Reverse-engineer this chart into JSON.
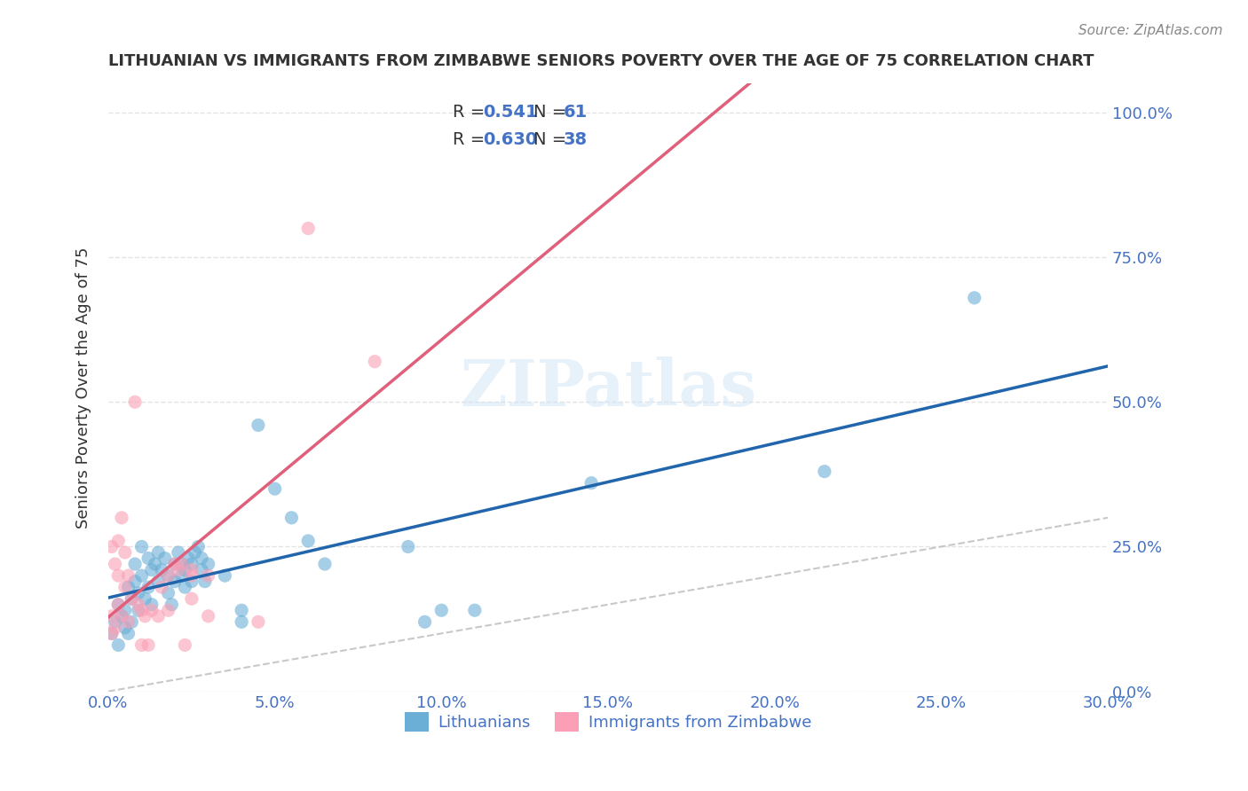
{
  "title": "LITHUANIAN VS IMMIGRANTS FROM ZIMBABWE SENIORS POVERTY OVER THE AGE OF 75 CORRELATION CHART",
  "source": "Source: ZipAtlas.com",
  "xlabel": "",
  "ylabel": "Seniors Poverty Over the Age of 75",
  "xlim": [
    0.0,
    0.3
  ],
  "ylim": [
    0.0,
    1.05
  ],
  "xticks": [
    0.0,
    0.05,
    0.1,
    0.15,
    0.2,
    0.25,
    0.3
  ],
  "yticks_right": [
    0.0,
    0.25,
    0.5,
    0.75,
    1.0
  ],
  "blue_R": 0.541,
  "blue_N": 61,
  "pink_R": 0.63,
  "pink_N": 38,
  "blue_color": "#6baed6",
  "pink_color": "#fa9fb5",
  "blue_line_color": "#2166ac",
  "pink_line_color": "#e05f7a",
  "blue_scatter": [
    [
      0.001,
      0.1
    ],
    [
      0.002,
      0.12
    ],
    [
      0.003,
      0.08
    ],
    [
      0.003,
      0.15
    ],
    [
      0.004,
      0.13
    ],
    [
      0.005,
      0.11
    ],
    [
      0.005,
      0.14
    ],
    [
      0.006,
      0.1
    ],
    [
      0.006,
      0.18
    ],
    [
      0.007,
      0.16
    ],
    [
      0.007,
      0.12
    ],
    [
      0.008,
      0.19
    ],
    [
      0.008,
      0.22
    ],
    [
      0.009,
      0.14
    ],
    [
      0.009,
      0.17
    ],
    [
      0.01,
      0.2
    ],
    [
      0.01,
      0.25
    ],
    [
      0.011,
      0.16
    ],
    [
      0.012,
      0.18
    ],
    [
      0.012,
      0.23
    ],
    [
      0.013,
      0.21
    ],
    [
      0.013,
      0.15
    ],
    [
      0.014,
      0.22
    ],
    [
      0.015,
      0.19
    ],
    [
      0.015,
      0.24
    ],
    [
      0.016,
      0.21
    ],
    [
      0.017,
      0.23
    ],
    [
      0.018,
      0.2
    ],
    [
      0.018,
      0.17
    ],
    [
      0.019,
      0.15
    ],
    [
      0.02,
      0.22
    ],
    [
      0.02,
      0.19
    ],
    [
      0.021,
      0.24
    ],
    [
      0.022,
      0.22
    ],
    [
      0.022,
      0.2
    ],
    [
      0.023,
      0.21
    ],
    [
      0.023,
      0.18
    ],
    [
      0.024,
      0.23
    ],
    [
      0.025,
      0.22
    ],
    [
      0.025,
      0.19
    ],
    [
      0.026,
      0.24
    ],
    [
      0.027,
      0.25
    ],
    [
      0.028,
      0.23
    ],
    [
      0.028,
      0.21
    ],
    [
      0.029,
      0.19
    ],
    [
      0.03,
      0.22
    ],
    [
      0.035,
      0.2
    ],
    [
      0.04,
      0.14
    ],
    [
      0.045,
      0.46
    ],
    [
      0.05,
      0.35
    ],
    [
      0.055,
      0.3
    ],
    [
      0.06,
      0.26
    ],
    [
      0.065,
      0.22
    ],
    [
      0.09,
      0.25
    ],
    [
      0.095,
      0.12
    ],
    [
      0.1,
      0.14
    ],
    [
      0.11,
      0.14
    ],
    [
      0.145,
      0.36
    ],
    [
      0.215,
      0.38
    ],
    [
      0.26,
      0.68
    ],
    [
      0.04,
      0.12
    ]
  ],
  "pink_scatter": [
    [
      0.001,
      0.1
    ],
    [
      0.001,
      0.13
    ],
    [
      0.002,
      0.11
    ],
    [
      0.002,
      0.22
    ],
    [
      0.003,
      0.15
    ],
    [
      0.003,
      0.2
    ],
    [
      0.003,
      0.26
    ],
    [
      0.004,
      0.13
    ],
    [
      0.004,
      0.3
    ],
    [
      0.005,
      0.18
    ],
    [
      0.005,
      0.24
    ],
    [
      0.006,
      0.12
    ],
    [
      0.006,
      0.2
    ],
    [
      0.007,
      0.16
    ],
    [
      0.008,
      0.5
    ],
    [
      0.009,
      0.15
    ],
    [
      0.01,
      0.14
    ],
    [
      0.01,
      0.08
    ],
    [
      0.011,
      0.13
    ],
    [
      0.012,
      0.08
    ],
    [
      0.013,
      0.14
    ],
    [
      0.015,
      0.13
    ],
    [
      0.016,
      0.18
    ],
    [
      0.018,
      0.2
    ],
    [
      0.018,
      0.14
    ],
    [
      0.02,
      0.22
    ],
    [
      0.021,
      0.21
    ],
    [
      0.022,
      0.22
    ],
    [
      0.023,
      0.08
    ],
    [
      0.025,
      0.2
    ],
    [
      0.025,
      0.16
    ],
    [
      0.025,
      0.21
    ],
    [
      0.03,
      0.2
    ],
    [
      0.03,
      0.13
    ],
    [
      0.045,
      0.12
    ],
    [
      0.06,
      0.8
    ],
    [
      0.08,
      0.57
    ],
    [
      0.001,
      0.25
    ]
  ],
  "diag_line_color": "#bbbbbb",
  "watermark": "ZIPatlas",
  "background_color": "#ffffff",
  "grid_color": "#dddddd"
}
